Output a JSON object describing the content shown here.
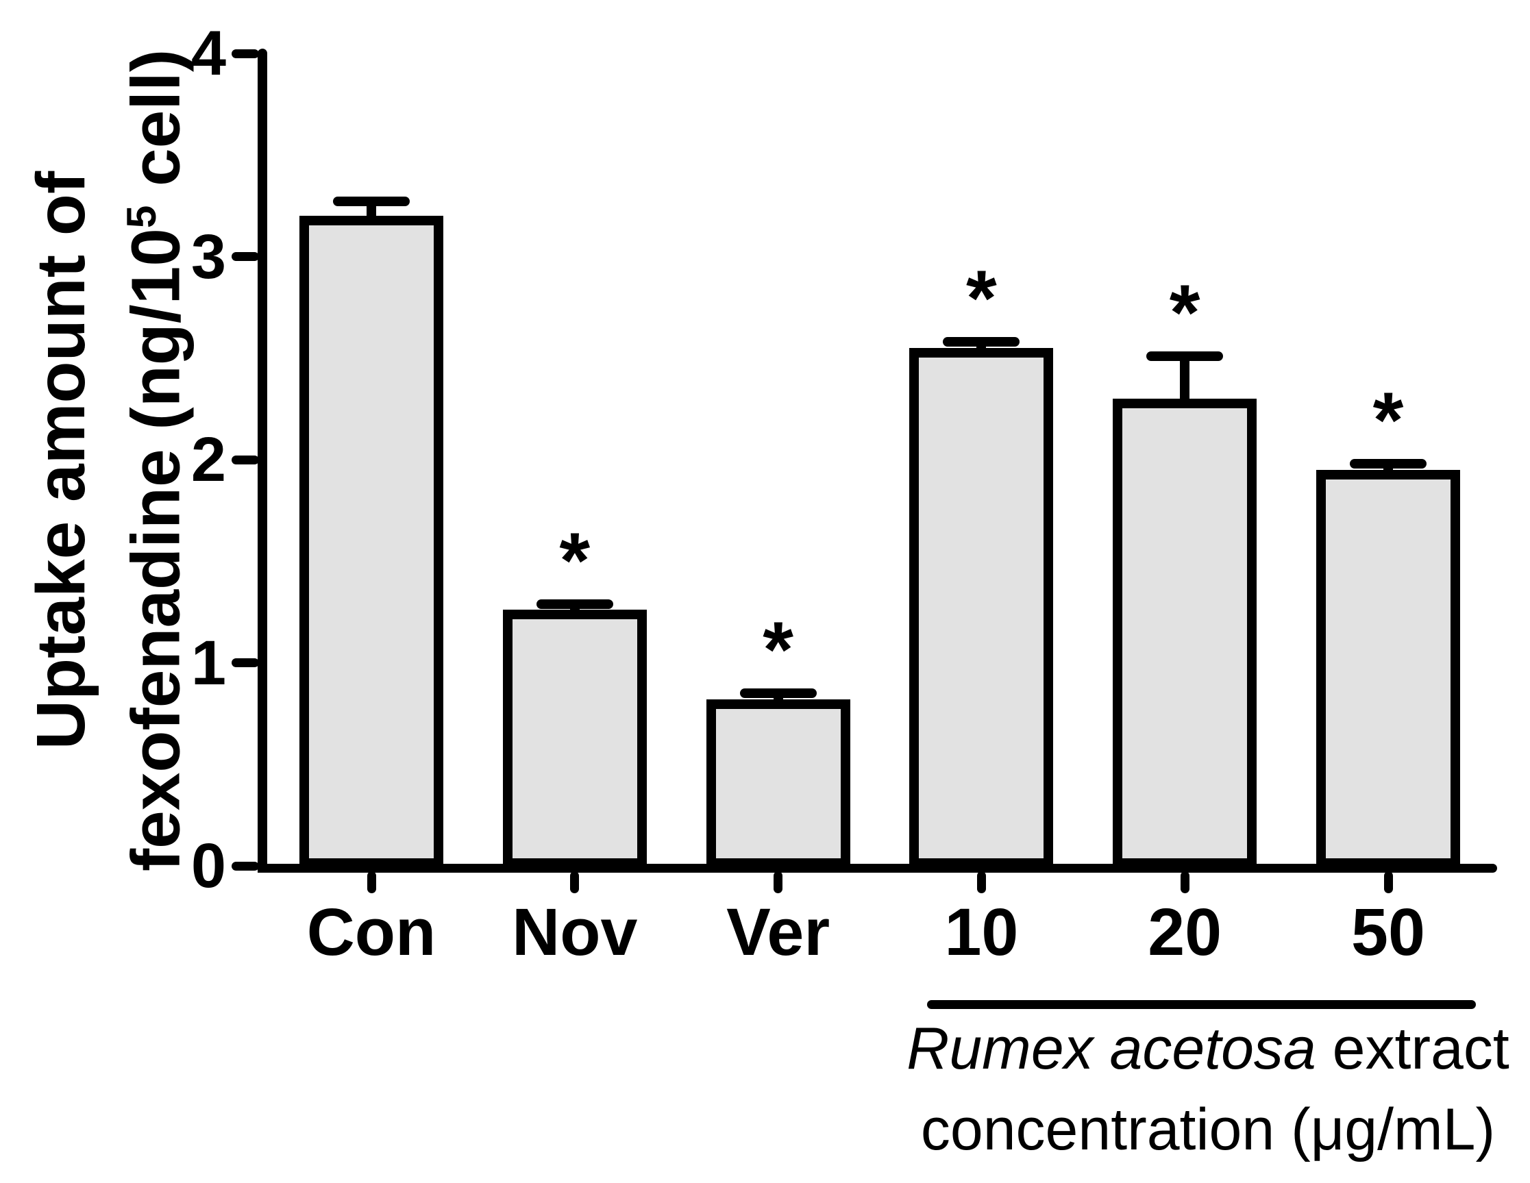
{
  "chart_data": {
    "type": "bar",
    "title": "",
    "categories": [
      "Con",
      "Nov",
      "Ver",
      "10",
      "20",
      "50"
    ],
    "values": [
      3.2,
      1.26,
      0.82,
      2.55,
      2.3,
      1.95
    ],
    "errors": [
      0.07,
      0.03,
      0.03,
      0.03,
      0.21,
      0.03
    ],
    "errors_shown": "upper-only",
    "starred": [
      false,
      true,
      true,
      true,
      true,
      true
    ],
    "significance_marker": "*",
    "ylabel": {
      "line1": "Uptake amount of",
      "line2_prefix": "fexofenadine (ng/10",
      "line2_sup": "5",
      "line2_suffix": " cell)"
    },
    "ylim": [
      0,
      4
    ],
    "yticks": [
      0,
      1,
      2,
      3,
      4
    ],
    "grid": false,
    "legend": false,
    "bar_fill": "#e2e2e2",
    "bar_stroke": "#000000",
    "xlabel_group": {
      "applies_to": [
        "10",
        "20",
        "50"
      ],
      "line1_italic": "Rumex acetosa",
      "line1_regular": " extract",
      "line2": "concentration (μg/mL)"
    }
  }
}
